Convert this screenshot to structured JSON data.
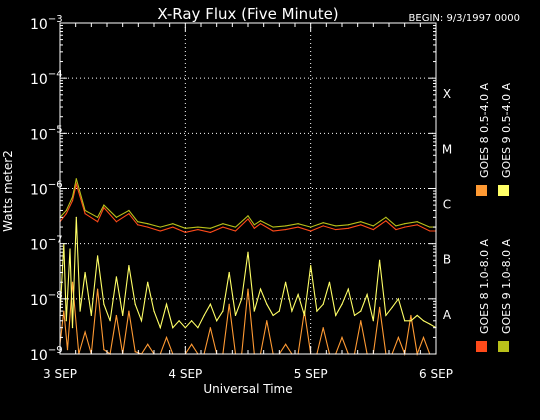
{
  "chart_data": {
    "type": "line",
    "title": "X-Ray Flux (Five Minute)",
    "begin_label": "BEGIN: 9/3/1997 0000",
    "xlabel": "Universal Time",
    "ylabel": "Watts meter2",
    "x_range": [
      "1997-09-03T00:00",
      "1997-09-06T00:00"
    ],
    "y_log_range": [
      -9,
      -3
    ],
    "y_scale": "log",
    "grid": true,
    "x_ticks": [
      {
        "day": 0,
        "label": "3 SEP"
      },
      {
        "day": 1,
        "label": "4 SEP"
      },
      {
        "day": 2,
        "label": "5 SEP"
      },
      {
        "day": 3,
        "label": "6 SEP"
      }
    ],
    "y_ticks": [
      {
        "exp": -9,
        "base": "10",
        "sup": "−9"
      },
      {
        "exp": -8,
        "base": "10",
        "sup": "−8"
      },
      {
        "exp": -7,
        "base": "10",
        "sup": "−7"
      },
      {
        "exp": -6,
        "base": "10",
        "sup": "−6"
      },
      {
        "exp": -5,
        "base": "10",
        "sup": "−5"
      },
      {
        "exp": -4,
        "base": "10",
        "sup": "−4"
      },
      {
        "exp": -3,
        "base": "10",
        "sup": "−3"
      }
    ],
    "flare_classes": [
      {
        "label": "A",
        "exp": -8
      },
      {
        "label": "B",
        "exp": -7
      },
      {
        "label": "C",
        "exp": -6
      },
      {
        "label": "M",
        "exp": -5
      },
      {
        "label": "X",
        "exp": -4
      }
    ],
    "series": [
      {
        "name": "GOES 8 1.0-8.0 A",
        "color": "#ff4a1a",
        "x": [
          0.0,
          0.05,
          0.1,
          0.13,
          0.2,
          0.3,
          0.35,
          0.45,
          0.55,
          0.62,
          0.7,
          0.8,
          0.9,
          1.0,
          1.1,
          1.2,
          1.3,
          1.4,
          1.5,
          1.55,
          1.6,
          1.7,
          1.8,
          1.9,
          2.0,
          2.1,
          2.2,
          2.3,
          2.4,
          2.5,
          2.6,
          2.68,
          2.75,
          2.85,
          2.95,
          3.0
        ],
        "y": [
          2.5e-07,
          3.5e-07,
          6e-07,
          1.2e-06,
          3.5e-07,
          2.5e-07,
          4.5e-07,
          2.5e-07,
          3.5e-07,
          2.2e-07,
          2e-07,
          1.7e-07,
          2e-07,
          1.6e-07,
          1.8e-07,
          1.6e-07,
          2e-07,
          1.7e-07,
          2.8e-07,
          1.9e-07,
          2.3e-07,
          1.7e-07,
          1.8e-07,
          2e-07,
          1.7e-07,
          2.1e-07,
          1.8e-07,
          1.9e-07,
          2.2e-07,
          1.8e-07,
          2.6e-07,
          1.8e-07,
          2e-07,
          2.2e-07,
          1.7e-07,
          1.7e-07
        ]
      },
      {
        "name": "GOES 8 0.5-4.0 A",
        "color": "#ff9a33",
        "x": [
          0.0,
          0.03,
          0.06,
          0.1,
          0.15,
          0.2,
          0.25,
          0.3,
          0.35,
          0.4,
          0.45,
          0.5,
          0.55,
          0.6,
          0.65,
          0.7,
          0.75,
          0.8,
          0.85,
          0.9,
          0.95,
          1.0,
          1.05,
          1.1,
          1.15,
          1.2,
          1.25,
          1.3,
          1.35,
          1.4,
          1.45,
          1.5,
          1.55,
          1.6,
          1.65,
          1.7,
          1.75,
          1.8,
          1.85,
          1.9,
          1.95,
          2.0,
          2.05,
          2.1,
          2.15,
          2.2,
          2.25,
          2.3,
          2.35,
          2.4,
          2.45,
          2.5,
          2.55,
          2.6,
          2.65,
          2.7,
          2.75,
          2.8,
          2.85,
          2.9,
          2.95,
          3.0
        ],
        "y": [
          1.5e-09,
          6e-09,
          1.2e-09,
          2e-08,
          1e-09,
          2.5e-09,
          1e-09,
          1.5e-08,
          1.2e-09,
          1e-09,
          5e-09,
          1e-09,
          6e-09,
          1.1e-09,
          1e-09,
          1.5e-09,
          1e-09,
          1e-09,
          2e-09,
          1e-09,
          1e-09,
          1e-09,
          1.5e-09,
          1e-09,
          1e-09,
          3e-09,
          1e-09,
          1e-09,
          8e-09,
          1e-09,
          1e-09,
          1.5e-08,
          1e-09,
          1e-09,
          4e-09,
          1e-09,
          1e-09,
          1.5e-09,
          1e-09,
          1e-09,
          6e-09,
          1e-09,
          1e-09,
          3e-09,
          1e-09,
          1e-09,
          2e-09,
          1e-09,
          1e-09,
          4e-09,
          1e-09,
          1e-09,
          7e-09,
          1e-09,
          1e-09,
          2e-09,
          1e-09,
          5e-09,
          1e-09,
          2e-09,
          1e-09,
          1e-09
        ]
      },
      {
        "name": "GOES 9 0.5-4.0 A",
        "color": "#ffff66",
        "x": [
          0.0,
          0.03,
          0.05,
          0.08,
          0.1,
          0.13,
          0.16,
          0.2,
          0.25,
          0.3,
          0.35,
          0.4,
          0.45,
          0.5,
          0.55,
          0.6,
          0.65,
          0.7,
          0.75,
          0.8,
          0.85,
          0.9,
          0.95,
          1.0,
          1.05,
          1.1,
          1.15,
          1.2,
          1.25,
          1.3,
          1.35,
          1.4,
          1.45,
          1.5,
          1.55,
          1.6,
          1.65,
          1.7,
          1.75,
          1.8,
          1.85,
          1.9,
          1.95,
          2.0,
          2.05,
          2.1,
          2.15,
          2.2,
          2.25,
          2.3,
          2.35,
          2.4,
          2.45,
          2.5,
          2.55,
          2.6,
          2.65,
          2.7,
          2.75,
          2.8,
          2.85,
          2.9,
          2.95,
          3.0
        ],
        "y": [
          5e-09,
          1e-07,
          4e-09,
          8e-08,
          3e-09,
          3e-07,
          6e-09,
          3e-08,
          5e-09,
          6e-08,
          8e-09,
          4e-09,
          2.5e-08,
          5e-09,
          4e-08,
          8e-09,
          4e-09,
          2e-08,
          6e-09,
          3e-09,
          8e-09,
          3e-09,
          4e-09,
          3e-09,
          4e-09,
          3e-09,
          5e-09,
          8e-09,
          4e-09,
          6e-09,
          3e-08,
          5e-09,
          1e-08,
          7e-08,
          6e-09,
          1.5e-08,
          8e-09,
          5e-09,
          6e-09,
          2e-08,
          6e-09,
          1.2e-08,
          5e-09,
          4e-08,
          6e-09,
          8e-09,
          2e-08,
          5e-09,
          8e-09,
          1.5e-08,
          5e-09,
          6e-09,
          1.2e-08,
          4e-09,
          5e-08,
          5e-09,
          7e-09,
          1e-08,
          4e-09,
          4e-09,
          5e-09,
          4e-09,
          3.5e-09,
          3e-09
        ]
      },
      {
        "name": "GOES 9 1.0-8.0 A",
        "color": "#b8c01a",
        "x": [
          0.0,
          0.05,
          0.1,
          0.13,
          0.2,
          0.3,
          0.35,
          0.45,
          0.55,
          0.62,
          0.7,
          0.8,
          0.9,
          1.0,
          1.1,
          1.2,
          1.3,
          1.4,
          1.5,
          1.55,
          1.6,
          1.7,
          1.8,
          1.9,
          2.0,
          2.1,
          2.2,
          2.3,
          2.4,
          2.5,
          2.6,
          2.68,
          2.75,
          2.85,
          2.95,
          3.0
        ],
        "y": [
          3e-07,
          4e-07,
          7e-07,
          1.5e-06,
          4e-07,
          3e-07,
          5e-07,
          3e-07,
          4e-07,
          2.5e-07,
          2.3e-07,
          2e-07,
          2.3e-07,
          1.9e-07,
          2e-07,
          1.9e-07,
          2.3e-07,
          2e-07,
          3.2e-07,
          2.2e-07,
          2.6e-07,
          2e-07,
          2.1e-07,
          2.3e-07,
          2e-07,
          2.4e-07,
          2.1e-07,
          2.2e-07,
          2.5e-07,
          2.1e-07,
          3e-07,
          2.1e-07,
          2.3e-07,
          2.5e-07,
          2e-07,
          2e-07
        ]
      }
    ]
  }
}
